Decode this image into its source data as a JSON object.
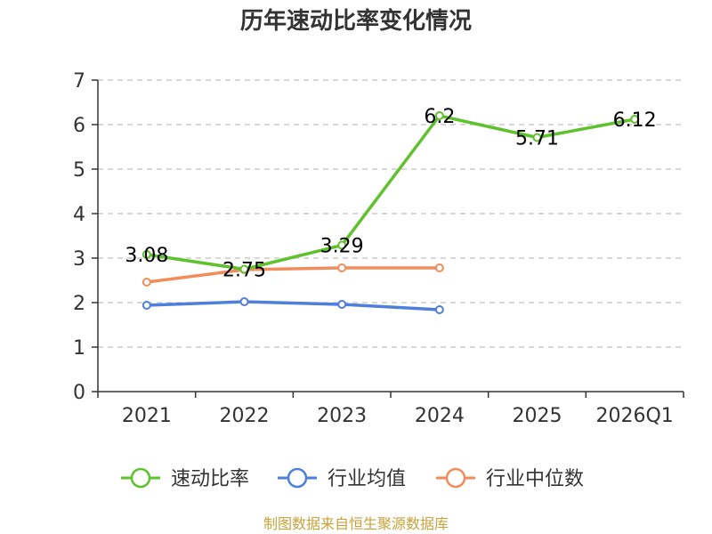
{
  "chart_data": {
    "type": "line",
    "title": "历年速动比率变化情况",
    "xlabel": "",
    "ylabel": "",
    "categories": [
      "2021",
      "2022",
      "2023",
      "2024",
      "2025",
      "2026Q1"
    ],
    "ylim": [
      0,
      7
    ],
    "yticks": [
      0,
      1,
      2,
      3,
      4,
      5,
      6,
      7
    ],
    "grid": true,
    "legend_position": "bottom",
    "series": [
      {
        "name": "速动比率",
        "color": "#5ec12d",
        "values": [
          3.08,
          2.75,
          3.29,
          6.2,
          5.71,
          6.12
        ],
        "labels": [
          "3.08",
          "2.75",
          "3.29",
          "6.2",
          "5.71",
          "6.12"
        ]
      },
      {
        "name": "行业均值",
        "color": "#4f7fdc",
        "values": [
          1.94,
          2.02,
          1.96,
          1.84,
          null,
          null
        ]
      },
      {
        "name": "行业中位数",
        "color": "#f28c5b",
        "values": [
          2.46,
          2.74,
          2.78,
          2.78,
          null,
          null
        ]
      }
    ],
    "source": "制图数据来自恒生聚源数据库"
  }
}
